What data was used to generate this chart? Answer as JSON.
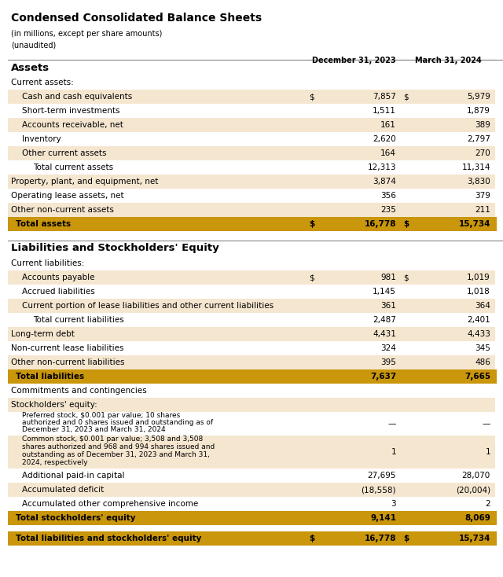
{
  "title": "Condensed Consolidated Balance Sheets",
  "subtitle1": "(in millions, except per share amounts)",
  "subtitle2": "(unaudited)",
  "col1_header": "December 31, 2023",
  "col2_header": "March 31, 2024",
  "bg_color": "#FFFFFF",
  "light_bg": "#F5E6D0",
  "gold_bg": "#C9960C",
  "rows": [
    {
      "label": "Assets",
      "val1": "",
      "val2": "",
      "type": "section_header",
      "indent": 0,
      "dollar1": false,
      "dollar2": false
    },
    {
      "label": "Current assets:",
      "val1": "",
      "val2": "",
      "type": "subheader",
      "indent": 0,
      "dollar1": false,
      "dollar2": false
    },
    {
      "label": "Cash and cash equivalents",
      "val1": "7,857",
      "val2": "5,979",
      "type": "data_shaded",
      "indent": 1,
      "dollar1": true,
      "dollar2": true
    },
    {
      "label": "Short-term investments",
      "val1": "1,511",
      "val2": "1,879",
      "type": "data_plain",
      "indent": 1,
      "dollar1": false,
      "dollar2": false
    },
    {
      "label": "Accounts receivable, net",
      "val1": "161",
      "val2": "389",
      "type": "data_shaded",
      "indent": 1,
      "dollar1": false,
      "dollar2": false
    },
    {
      "label": "Inventory",
      "val1": "2,620",
      "val2": "2,797",
      "type": "data_plain",
      "indent": 1,
      "dollar1": false,
      "dollar2": false
    },
    {
      "label": "Other current assets",
      "val1": "164",
      "val2": "270",
      "type": "data_shaded",
      "indent": 1,
      "dollar1": false,
      "dollar2": false
    },
    {
      "label": "Total current assets",
      "val1": "12,313",
      "val2": "11,314",
      "type": "total_plain",
      "indent": 2,
      "dollar1": false,
      "dollar2": false
    },
    {
      "label": "Property, plant, and equipment, net",
      "val1": "3,874",
      "val2": "3,830",
      "type": "data_shaded",
      "indent": 0,
      "dollar1": false,
      "dollar2": false
    },
    {
      "label": "Operating lease assets, net",
      "val1": "356",
      "val2": "379",
      "type": "data_plain",
      "indent": 0,
      "dollar1": false,
      "dollar2": false
    },
    {
      "label": "Other non-current assets",
      "val1": "235",
      "val2": "211",
      "type": "data_shaded",
      "indent": 0,
      "dollar1": false,
      "dollar2": false
    },
    {
      "label": "Total assets",
      "val1": "16,778",
      "val2": "15,734",
      "type": "grand_total",
      "indent": 0,
      "dollar1": true,
      "dollar2": true
    },
    {
      "label": "",
      "val1": "",
      "val2": "",
      "type": "spacer",
      "indent": 0,
      "dollar1": false,
      "dollar2": false
    },
    {
      "label": "Liabilities and Stockholders' Equity",
      "val1": "",
      "val2": "",
      "type": "section_header",
      "indent": 0,
      "dollar1": false,
      "dollar2": false
    },
    {
      "label": "Current liabilities:",
      "val1": "",
      "val2": "",
      "type": "subheader",
      "indent": 0,
      "dollar1": false,
      "dollar2": false
    },
    {
      "label": "Accounts payable",
      "val1": "981",
      "val2": "1,019",
      "type": "data_shaded",
      "indent": 1,
      "dollar1": true,
      "dollar2": true
    },
    {
      "label": "Accrued liabilities",
      "val1": "1,145",
      "val2": "1,018",
      "type": "data_plain",
      "indent": 1,
      "dollar1": false,
      "dollar2": false
    },
    {
      "label": "Current portion of lease liabilities and other current liabilities",
      "val1": "361",
      "val2": "364",
      "type": "data_shaded",
      "indent": 1,
      "dollar1": false,
      "dollar2": false
    },
    {
      "label": "Total current liabilities",
      "val1": "2,487",
      "val2": "2,401",
      "type": "total_plain",
      "indent": 2,
      "dollar1": false,
      "dollar2": false
    },
    {
      "label": "Long-term debt",
      "val1": "4,431",
      "val2": "4,433",
      "type": "data_shaded",
      "indent": 0,
      "dollar1": false,
      "dollar2": false
    },
    {
      "label": "Non-current lease liabilities",
      "val1": "324",
      "val2": "345",
      "type": "data_plain",
      "indent": 0,
      "dollar1": false,
      "dollar2": false
    },
    {
      "label": "Other non-current liabilities",
      "val1": "395",
      "val2": "486",
      "type": "data_shaded",
      "indent": 0,
      "dollar1": false,
      "dollar2": false
    },
    {
      "label": "Total liabilities",
      "val1": "7,637",
      "val2": "7,665",
      "type": "grand_total",
      "indent": 0,
      "dollar1": false,
      "dollar2": false
    },
    {
      "label": "Commitments and contingencies",
      "val1": "",
      "val2": "",
      "type": "subheader",
      "indent": 0,
      "dollar1": false,
      "dollar2": false
    },
    {
      "label": "Stockholders' equity:",
      "val1": "",
      "val2": "",
      "type": "data_shaded_nonum",
      "indent": 0,
      "dollar1": false,
      "dollar2": false
    },
    {
      "label": "Preferred stock, $0.001 par value; 10 shares authorized and 0 shares issued and outstanding as of December 31, 2023 and March 31, 2024",
      "val1": "—",
      "val2": "—",
      "type": "data_plain_small",
      "indent": 1,
      "dollar1": false,
      "dollar2": false
    },
    {
      "label": "Common stock, $0.001 par value; 3,508 and 3,508 shares authorized and 968 and 994 shares issued and outstanding as of December 31, 2023 and March 31, 2024, respectively",
      "val1": "1",
      "val2": "1",
      "type": "data_shaded_small",
      "indent": 1,
      "dollar1": false,
      "dollar2": false
    },
    {
      "label": "Additional paid-in capital",
      "val1": "27,695",
      "val2": "28,070",
      "type": "data_plain",
      "indent": 1,
      "dollar1": false,
      "dollar2": false
    },
    {
      "label": "Accumulated deficit",
      "val1": "(18,558)",
      "val2": "(20,004)",
      "type": "data_shaded",
      "indent": 1,
      "dollar1": false,
      "dollar2": false
    },
    {
      "label": "Accumulated other comprehensive income",
      "val1": "3",
      "val2": "2",
      "type": "data_plain",
      "indent": 1,
      "dollar1": false,
      "dollar2": false
    },
    {
      "label": "Total stockholders' equity",
      "val1": "9,141",
      "val2": "8,069",
      "type": "grand_total",
      "indent": 0,
      "dollar1": false,
      "dollar2": false
    },
    {
      "label": "",
      "val1": "",
      "val2": "",
      "type": "spacer_small",
      "indent": 0,
      "dollar1": false,
      "dollar2": false
    },
    {
      "label": "Total liabilities and stockholders' equity",
      "val1": "16,778",
      "val2": "15,734",
      "type": "grand_total_final",
      "indent": 0,
      "dollar1": true,
      "dollar2": true
    }
  ]
}
